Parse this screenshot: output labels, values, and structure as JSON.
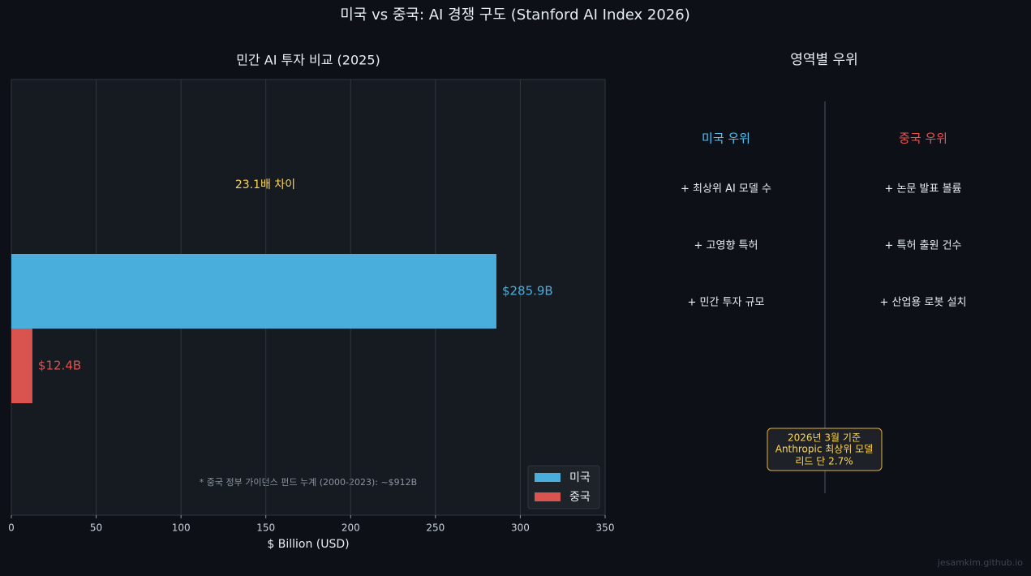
{
  "title": "미국 vs 중국: AI 경쟁 구도 (Stanford AI Index 2026)",
  "chart_data": {
    "type": "barh",
    "title": "민간 AI 투자 비교 (2025)",
    "xlabel": "$ Billion (USD)",
    "series": [
      {
        "name": "미국",
        "color": "#4aaedc",
        "values": [
          285.9
        ],
        "value_labels": [
          "$285.9B"
        ]
      },
      {
        "name": "중국",
        "color": "#d9534f",
        "values": [
          12.4
        ],
        "value_labels": [
          "$12.4B"
        ]
      }
    ],
    "xlim": [
      0,
      350
    ],
    "xticks": [
      0,
      50,
      100,
      150,
      200,
      250,
      300,
      350
    ],
    "grid": true,
    "legend": "lower right",
    "annotations": [
      "23.1배 차이",
      "* 중국 정부 가이던스 펀드 누계 (2000-2023): ~$912B"
    ]
  },
  "panel": {
    "title": "영역별 우위",
    "columns": [
      {
        "heading": "미국 우위",
        "color": "#4fc3f7",
        "items": [
          "+ 최상위 AI 모델 수",
          "+ 고영향 특허",
          "+ 민간 투자 규모"
        ]
      },
      {
        "heading": "중국 우위",
        "color": "#ef5350",
        "items": [
          "+ 논문 발표 볼륨",
          "+ 특허 출원 건수",
          "+ 산업용 로봇 설치"
        ]
      }
    ],
    "note": [
      "2026년 3월 기준",
      "Anthropic 최상위 모델",
      "리드 단 2.7%"
    ]
  },
  "watermark": "jesamkim.github.io"
}
